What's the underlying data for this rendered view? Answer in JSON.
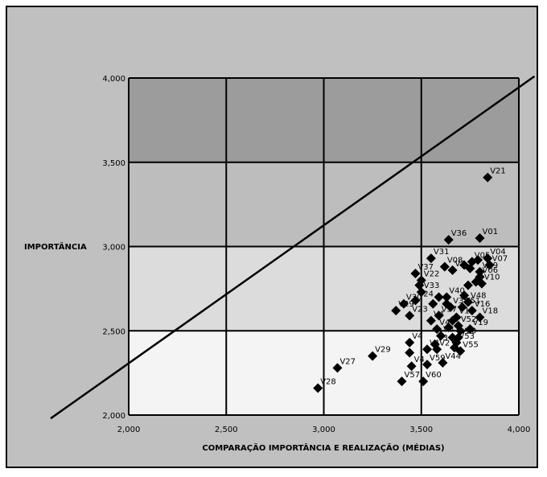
{
  "chart_data": {
    "type": "scatter",
    "title": "",
    "xlabel": "COMPARAÇÃO IMPORTÂNCIA E REALIZAÇÃO (MÉDIAS)",
    "ylabel": "IMPORTÂNCIA",
    "xlim": [
      2.0,
      4.0
    ],
    "ylim": [
      2.0,
      4.0
    ],
    "x_ticks": [
      2.0,
      2.5,
      3.0,
      3.5,
      4.0
    ],
    "y_ticks": [
      2.0,
      2.5,
      3.0,
      3.5,
      4.0
    ],
    "x_tick_labels": [
      "2,000",
      "2,500",
      "3,000",
      "3,500",
      "4,000"
    ],
    "y_tick_labels": [
      "2,000",
      "2,500",
      "3,000",
      "3,500",
      "4,000"
    ],
    "grid": true,
    "legend": "none",
    "background_bands": [
      "#9c9c9c",
      "#bdbdbd",
      "#dcdcdc",
      "#f4f4f4"
    ],
    "reference_line": {
      "from": [
        1.6,
        1.98
      ],
      "to": [
        4.08,
        4.01
      ]
    },
    "points": [
      {
        "label": "V21",
        "x": 3.84,
        "y": 3.41
      },
      {
        "label": "V01",
        "x": 3.8,
        "y": 3.05
      },
      {
        "label": "V36",
        "x": 3.64,
        "y": 3.04
      },
      {
        "label": "V04",
        "x": 3.84,
        "y": 2.93
      },
      {
        "label": "V31",
        "x": 3.55,
        "y": 2.93
      },
      {
        "label": "",
        "x": 3.79,
        "y": 2.92
      },
      {
        "label": "V05",
        "x": 3.76,
        "y": 2.91
      },
      {
        "label": "V07",
        "x": 3.85,
        "y": 2.89
      },
      {
        "label": "V08",
        "x": 3.62,
        "y": 2.88
      },
      {
        "label": "",
        "x": 3.72,
        "y": 2.89
      },
      {
        "label": "",
        "x": 3.75,
        "y": 2.87
      },
      {
        "label": "V3",
        "x": 3.66,
        "y": 2.86
      },
      {
        "label": "V09",
        "x": 3.8,
        "y": 2.85
      },
      {
        "label": "V37",
        "x": 3.47,
        "y": 2.84
      },
      {
        "label": "V06",
        "x": 3.8,
        "y": 2.82
      },
      {
        "label": "V22",
        "x": 3.5,
        "y": 2.8
      },
      {
        "label": "V10",
        "x": 3.81,
        "y": 2.78
      },
      {
        "label": "",
        "x": 3.78,
        "y": 2.79
      },
      {
        "label": "",
        "x": 3.74,
        "y": 2.77
      },
      {
        "label": "",
        "x": 3.49,
        "y": 2.77
      },
      {
        "label": "V33",
        "x": 3.5,
        "y": 2.73
      },
      {
        "label": "V40",
        "x": 3.63,
        "y": 2.7
      },
      {
        "label": "",
        "x": 3.72,
        "y": 2.71
      },
      {
        "label": "",
        "x": 3.59,
        "y": 2.7
      },
      {
        "label": "V48",
        "x": 3.74,
        "y": 2.67
      },
      {
        "label": "V30",
        "x": 3.41,
        "y": 2.66
      },
      {
        "label": "V24",
        "x": 3.47,
        "y": 2.68
      },
      {
        "label": "",
        "x": 3.56,
        "y": 2.66
      },
      {
        "label": "",
        "x": 3.63,
        "y": 2.66
      },
      {
        "label": "V38",
        "x": 3.65,
        "y": 2.64
      },
      {
        "label": "V51",
        "x": 3.71,
        "y": 2.64
      },
      {
        "label": "V16",
        "x": 3.76,
        "y": 2.62
      },
      {
        "label": "V29",
        "x": 3.37,
        "y": 2.62
      },
      {
        "label": "V23",
        "x": 3.44,
        "y": 2.59
      },
      {
        "label": "V37",
        "x": 3.59,
        "y": 2.59
      },
      {
        "label": "V17",
        "x": 3.68,
        "y": 2.58
      },
      {
        "label": "V18",
        "x": 3.8,
        "y": 2.58
      },
      {
        "label": "V4",
        "x": 3.55,
        "y": 2.56
      },
      {
        "label": "",
        "x": 3.66,
        "y": 2.56
      },
      {
        "label": "V52",
        "x": 3.69,
        "y": 2.53
      },
      {
        "label": "V19",
        "x": 3.75,
        "y": 2.51
      },
      {
        "label": "V4",
        "x": 3.58,
        "y": 2.51
      },
      {
        "label": "",
        "x": 3.64,
        "y": 2.52
      },
      {
        "label": "",
        "x": 3.7,
        "y": 2.5
      },
      {
        "label": "V6",
        "x": 3.6,
        "y": 2.47
      },
      {
        "label": "V20",
        "x": 3.69,
        "y": 2.46
      },
      {
        "label": "",
        "x": 3.66,
        "y": 2.46
      },
      {
        "label": "V53",
        "x": 3.68,
        "y": 2.43
      },
      {
        "label": "V4",
        "x": 3.44,
        "y": 2.43
      },
      {
        "label": "V3",
        "x": 3.57,
        "y": 2.42
      },
      {
        "label": "V1",
        "x": 3.53,
        "y": 2.39
      },
      {
        "label": "V2",
        "x": 3.58,
        "y": 2.39
      },
      {
        "label": "",
        "x": 3.67,
        "y": 2.4
      },
      {
        "label": "V55",
        "x": 3.7,
        "y": 2.38
      },
      {
        "label": "",
        "x": 3.44,
        "y": 2.37
      },
      {
        "label": "V29",
        "x": 3.25,
        "y": 2.35
      },
      {
        "label": "V59",
        "x": 3.53,
        "y": 2.3
      },
      {
        "label": "V44",
        "x": 3.61,
        "y": 2.31
      },
      {
        "label": "V4",
        "x": 3.45,
        "y": 2.29
      },
      {
        "label": "V27",
        "x": 3.07,
        "y": 2.28
      },
      {
        "label": "V57",
        "x": 3.4,
        "y": 2.2
      },
      {
        "label": "V60",
        "x": 3.51,
        "y": 2.2
      },
      {
        "label": "V28",
        "x": 2.97,
        "y": 2.16
      }
    ]
  }
}
